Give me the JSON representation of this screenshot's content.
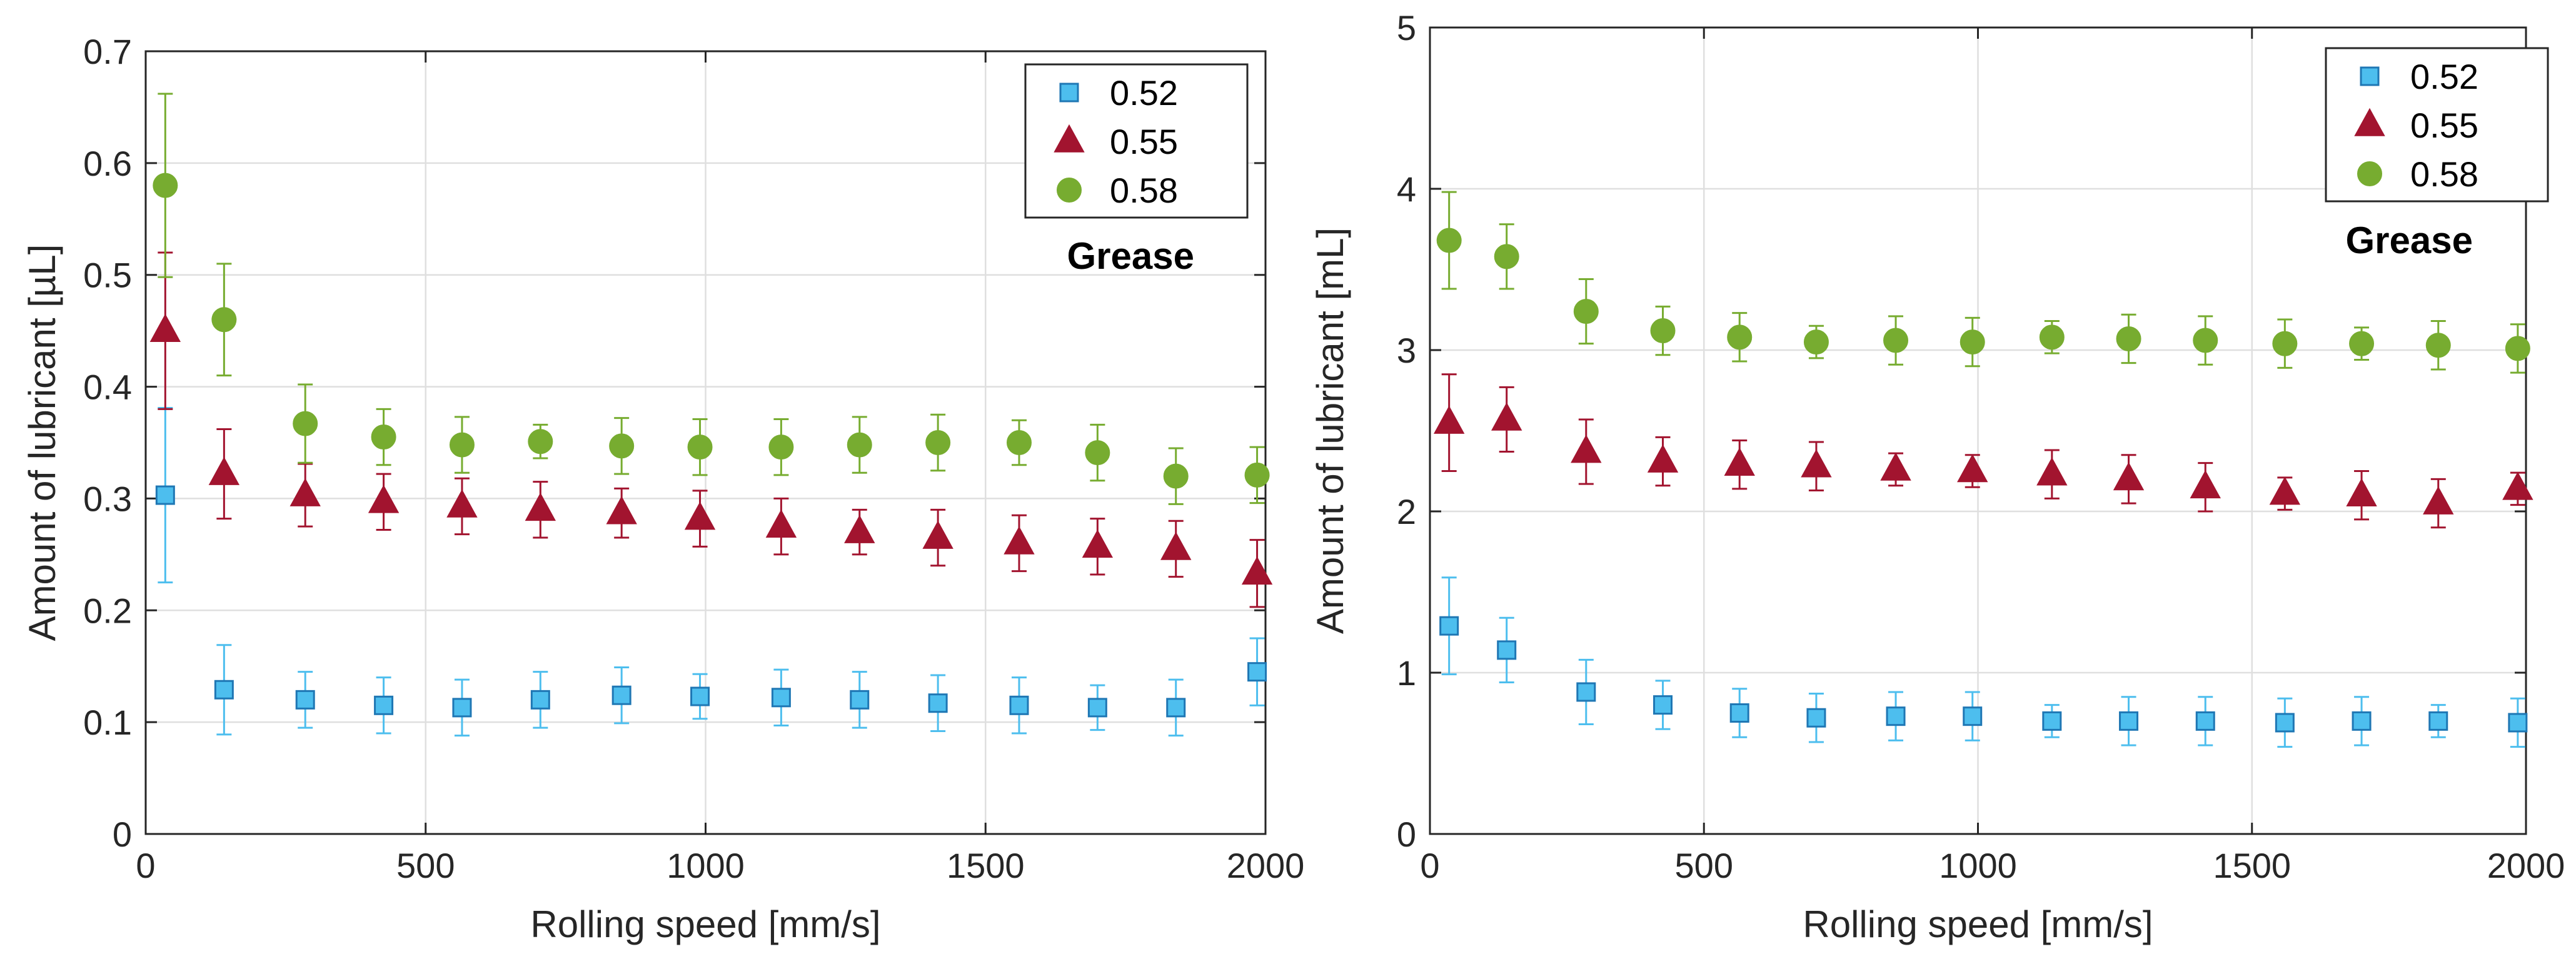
{
  "chart_data": [
    {
      "type": "scatter",
      "title": "",
      "xlabel": "Rolling speed [mm/s]",
      "ylabel": "Amount of lubricant [µL]",
      "xlim": [
        0,
        2000
      ],
      "ylim": [
        0,
        0.7
      ],
      "xticks": [
        0,
        500,
        1000,
        1500,
        2000
      ],
      "yticks": [
        0,
        0.1,
        0.2,
        0.3,
        0.4,
        0.5,
        0.6,
        0.7
      ],
      "ytick_labels": [
        "0",
        "0.1",
        "0.2",
        "0.3",
        "0.4",
        "0.5",
        "0.6",
        "0.7"
      ],
      "grid": true,
      "legend_position": "top-right",
      "annotation": "Grease",
      "x": [
        35,
        140,
        285,
        425,
        565,
        705,
        850,
        990,
        1135,
        1275,
        1415,
        1560,
        1700,
        1840,
        1985
      ],
      "series": [
        {
          "name": "0.52",
          "marker": "square",
          "color": "#4DBEEE",
          "edge": "#1F77B4",
          "values": [
            0.303,
            0.129,
            0.12,
            0.115,
            0.113,
            0.12,
            0.124,
            0.123,
            0.122,
            0.12,
            0.117,
            0.115,
            0.113,
            0.113,
            0.145
          ],
          "errors": [
            0.078,
            0.04,
            0.025,
            0.025,
            0.025,
            0.025,
            0.025,
            0.02,
            0.025,
            0.025,
            0.025,
            0.025,
            0.02,
            0.025,
            0.03
          ]
        },
        {
          "name": "0.55",
          "marker": "triangle",
          "color": "#A2142F",
          "edge": "#A2142F",
          "values": [
            0.45,
            0.322,
            0.303,
            0.297,
            0.293,
            0.29,
            0.287,
            0.282,
            0.275,
            0.27,
            0.265,
            0.26,
            0.257,
            0.255,
            0.233
          ],
          "errors": [
            0.07,
            0.04,
            0.028,
            0.025,
            0.025,
            0.025,
            0.022,
            0.025,
            0.025,
            0.02,
            0.025,
            0.025,
            0.025,
            0.025,
            0.03
          ]
        },
        {
          "name": "0.58",
          "marker": "circle",
          "color": "#77AC30",
          "edge": "#77AC30",
          "values": [
            0.58,
            0.46,
            0.367,
            0.355,
            0.348,
            0.351,
            0.347,
            0.346,
            0.346,
            0.348,
            0.35,
            0.35,
            0.341,
            0.32,
            0.321
          ],
          "errors": [
            0.082,
            0.05,
            0.035,
            0.025,
            0.025,
            0.015,
            0.025,
            0.025,
            0.025,
            0.025,
            0.025,
            0.02,
            0.025,
            0.025,
            0.025
          ]
        }
      ]
    },
    {
      "type": "scatter",
      "title": "",
      "xlabel": "Rolling speed [mm/s]",
      "ylabel": "Amount of lubricant [mL]",
      "xlim": [
        0,
        2000
      ],
      "ylim": [
        0,
        5
      ],
      "xticks": [
        0,
        500,
        1000,
        1500,
        2000
      ],
      "yticks": [
        0,
        1,
        2,
        3,
        4,
        5
      ],
      "ytick_labels": [
        "0",
        "1",
        "2",
        "3",
        "4",
        "5"
      ],
      "grid": true,
      "legend_position": "top-right",
      "annotation": "Grease",
      "x": [
        35,
        140,
        285,
        425,
        565,
        705,
        850,
        990,
        1135,
        1275,
        1415,
        1560,
        1700,
        1840,
        1985
      ],
      "series": [
        {
          "name": "0.52",
          "marker": "square",
          "color": "#4DBEEE",
          "edge": "#1F77B4",
          "values": [
            1.29,
            1.14,
            0.88,
            0.8,
            0.75,
            0.72,
            0.73,
            0.73,
            0.7,
            0.7,
            0.7,
            0.69,
            0.7,
            0.7,
            0.69
          ],
          "errors": [
            0.3,
            0.2,
            0.2,
            0.15,
            0.15,
            0.15,
            0.15,
            0.15,
            0.1,
            0.15,
            0.15,
            0.15,
            0.15,
            0.1,
            0.15
          ]
        },
        {
          "name": "0.55",
          "marker": "triangle",
          "color": "#A2142F",
          "edge": "#A2142F",
          "values": [
            2.55,
            2.57,
            2.37,
            2.31,
            2.29,
            2.28,
            2.26,
            2.25,
            2.23,
            2.2,
            2.15,
            2.11,
            2.1,
            2.05,
            2.14
          ],
          "errors": [
            0.3,
            0.2,
            0.2,
            0.15,
            0.15,
            0.15,
            0.1,
            0.1,
            0.15,
            0.15,
            0.15,
            0.1,
            0.15,
            0.15,
            0.1
          ]
        },
        {
          "name": "0.58",
          "marker": "circle",
          "color": "#77AC30",
          "edge": "#77AC30",
          "values": [
            3.68,
            3.58,
            3.24,
            3.12,
            3.08,
            3.05,
            3.06,
            3.05,
            3.08,
            3.07,
            3.06,
            3.04,
            3.04,
            3.03,
            3.01
          ],
          "errors": [
            0.3,
            0.2,
            0.2,
            0.15,
            0.15,
            0.1,
            0.15,
            0.15,
            0.1,
            0.15,
            0.15,
            0.15,
            0.1,
            0.15,
            0.15
          ]
        }
      ]
    }
  ]
}
